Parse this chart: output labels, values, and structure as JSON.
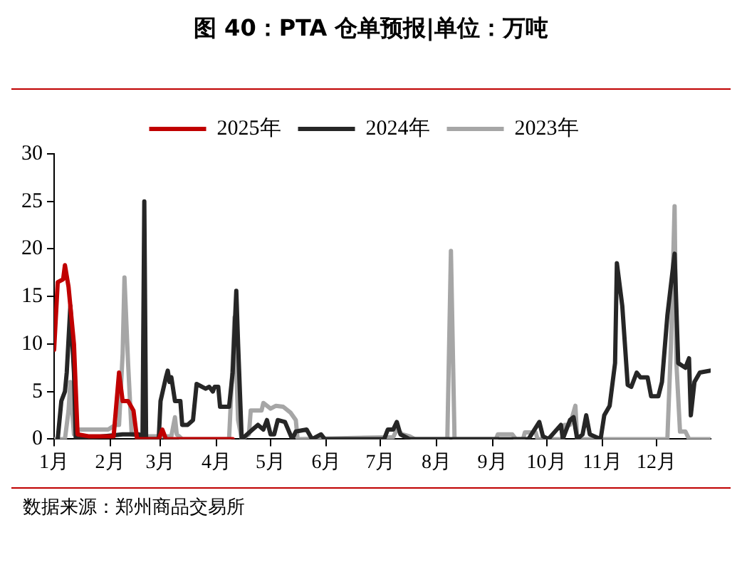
{
  "chart_data": {
    "type": "line",
    "title": "图 40：PTA 仓单预报|单位：万吨",
    "annotations": [
      "数据来源：郑州商品交易所"
    ],
    "xlim": [
      "--01-01",
      "--12-31"
    ],
    "xticks": [
      {
        "value": "--01-01",
        "label": "1月"
      },
      {
        "value": "--02-01",
        "label": "2月"
      },
      {
        "value": "--03-01",
        "label": "3月"
      },
      {
        "value": "--04-01",
        "label": "4月"
      },
      {
        "value": "--05-01",
        "label": "5月"
      },
      {
        "value": "--06-01",
        "label": "6月"
      },
      {
        "value": "--07-01",
        "label": "7月"
      },
      {
        "value": "--08-01",
        "label": "8月"
      },
      {
        "value": "--09-01",
        "label": "9月"
      },
      {
        "value": "--10-01",
        "label": "10月"
      },
      {
        "value": "--11-01",
        "label": "11月"
      },
      {
        "value": "--12-01",
        "label": "12月"
      }
    ],
    "ylim": [
      0,
      30
    ],
    "yticks": [
      0,
      5,
      10,
      15,
      20,
      25,
      30
    ],
    "grid": false,
    "legend": "top",
    "marker": "none",
    "line_style": "solid",
    "series": [
      {
        "name": "2025年",
        "color": "#c00000",
        "x": [
          "--01-01",
          "--01-03",
          "--01-06",
          "--01-07",
          "--01-09",
          "--01-12",
          "--01-14",
          "--01-20",
          "--02-03",
          "--02-06",
          "--02-08",
          "--02-11",
          "--02-14",
          "--02-16",
          "--02-28",
          "--03-02",
          "--03-04",
          "--04-10"
        ],
        "values": [
          9.4,
          16.5,
          16.8,
          18.3,
          16,
          10,
          0.5,
          0.3,
          0.3,
          7,
          4,
          4,
          3,
          0,
          0,
          1,
          0,
          0
        ]
      },
      {
        "name": "2024年",
        "color": "#262626",
        "x": [
          "--01-03",
          "--01-05",
          "--01-07",
          "--01-08",
          "--01-10",
          "--01-12",
          "--01-13",
          "--02-08",
          "--02-17",
          "--02-19",
          "--02-20",
          "--02-21",
          "--02-28",
          "--03-01",
          "--03-04",
          "--03-05",
          "--03-06",
          "--03-07",
          "--03-09",
          "--03-12",
          "--03-13",
          "--03-16",
          "--03-19",
          "--03-21",
          "--03-26",
          "--03-28",
          "--03-30",
          "--03-31",
          "--04-02",
          "--04-03",
          "--04-08",
          "--04-10",
          "--04-12",
          "--04-13",
          "--04-15",
          "--04-21",
          "--04-24",
          "--04-27",
          "--04-29",
          "--05-01",
          "--05-03",
          "--05-05",
          "--05-09",
          "--05-13",
          "--05-15",
          "--05-21",
          "--05-24",
          "--05-29",
          "--05-31",
          "--07-03",
          "--07-05",
          "--07-08",
          "--07-10",
          "--07-12",
          "--07-17",
          "--09-21",
          "--09-27",
          "--09-29",
          "--10-02",
          "--10-09",
          "--10-10",
          "--10-14",
          "--10-16",
          "--10-18",
          "--10-21",
          "--10-23",
          "--10-25",
          "--10-31",
          "--11-02",
          "--11-05",
          "--11-08",
          "--11-09",
          "--11-12",
          "--11-15",
          "--11-17",
          "--11-20",
          "--11-22",
          "--11-26",
          "--11-28",
          "--12-02",
          "--12-04",
          "--12-07",
          "--12-11",
          "--12-13",
          "--12-17",
          "--12-19",
          "--12-20",
          "--12-22",
          "--12-25",
          "--12-31"
        ],
        "values": [
          0,
          4,
          5,
          7,
          14,
          7,
          0,
          0.5,
          0.5,
          0,
          25,
          0,
          0,
          4,
          6.5,
          7.2,
          6,
          6.5,
          4,
          4,
          1.5,
          1.5,
          2,
          5.8,
          5.3,
          5.5,
          5,
          5.5,
          5.5,
          3.4,
          3.4,
          7,
          15.6,
          10,
          0,
          1,
          1.5,
          1,
          2,
          0.5,
          0.5,
          2,
          1.8,
          0,
          0.8,
          1,
          0,
          0.5,
          0,
          0,
          1,
          1,
          1.8,
          0.5,
          0,
          0,
          1.8,
          0.3,
          0,
          1.5,
          0,
          2,
          2.3,
          0,
          0.5,
          2.5,
          0.5,
          0,
          2.5,
          3.5,
          8,
          18.5,
          14,
          5.7,
          5.5,
          7,
          6.5,
          6.5,
          4.5,
          4.5,
          6,
          13,
          19.5,
          8,
          7.5,
          8.5,
          2.5,
          6,
          7,
          7.2
        ]
      },
      {
        "name": "2023年",
        "color": "#a6a6a6",
        "x": [
          "--01-01",
          "--01-07",
          "--01-09",
          "--01-10",
          "--01-11",
          "--01-12",
          "--01-15",
          "--01-31",
          "--02-04",
          "--02-06",
          "--02-08",
          "--02-09",
          "--02-11",
          "--02-13",
          "--02-17",
          "--03-07",
          "--03-09",
          "--03-10",
          "--03-13",
          "--04-08",
          "--04-10",
          "--04-11",
          "--04-13",
          "--04-15",
          "--04-19",
          "--04-20",
          "--04-26",
          "--04-27",
          "--05-01",
          "--05-04",
          "--05-08",
          "--05-12",
          "--05-15",
          "--05-16",
          "--07-08",
          "--07-10",
          "--07-13",
          "--07-17",
          "--07-20",
          "--08-07",
          "--08-09",
          "--08-11",
          "--09-03",
          "--09-04",
          "--09-12",
          "--09-14",
          "--09-18",
          "--09-19",
          "--09-25",
          "--09-26",
          "--10-10",
          "--10-11",
          "--10-14",
          "--10-17",
          "--10-18",
          "--12-07",
          "--12-09",
          "--12-11",
          "--12-12",
          "--12-14",
          "--12-17",
          "--12-19",
          "--12-31"
        ],
        "values": [
          0,
          0,
          3,
          6,
          3,
          0.5,
          1,
          1,
          1.5,
          1.5,
          9,
          17,
          8,
          0.5,
          0.3,
          0.3,
          2.3,
          0.5,
          0,
          0,
          8,
          12.8,
          2,
          0,
          0.5,
          3,
          3,
          3.8,
          3.2,
          3.5,
          3.4,
          2.8,
          2,
          0,
          0.2,
          1,
          0.5,
          0.3,
          0,
          0,
          19.8,
          0,
          0,
          0.5,
          0.5,
          0,
          0,
          0.7,
          0.7,
          0,
          0,
          1.5,
          1.5,
          3.5,
          0,
          0,
          10,
          24.5,
          8,
          0.8,
          0.8,
          0,
          0
        ]
      }
    ]
  }
}
